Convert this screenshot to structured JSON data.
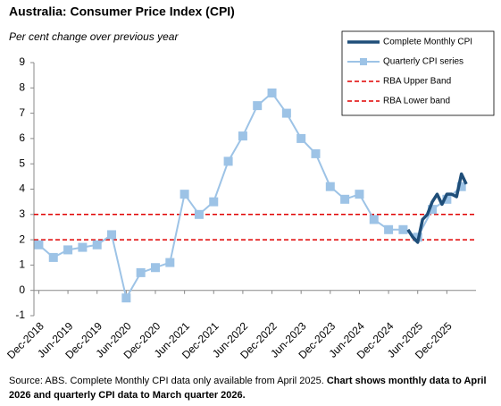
{
  "chart_data": {
    "type": "line",
    "title": "Australia: Consumer Price Index (CPI)",
    "subtitle": "Per cent change over previous year",
    "footnote": "Source: ABS.  Complete Monthly CPI data only available from April 2025.",
    "footnote_bold": "Chart shows monthly data to April 2026 and quarterly CPI data to March quarter 2026.",
    "ylim": [
      -1,
      9
    ],
    "yticks": [
      -1,
      0,
      1,
      2,
      3,
      4,
      5,
      6,
      7,
      8,
      9
    ],
    "xlim": [
      "Nov-2018",
      "Jun-2026"
    ],
    "xticks": [
      "Dec-2018",
      "Jun-2019",
      "Dec-2019",
      "Jun-2020",
      "Dec-2020",
      "Jun-2021",
      "Dec-2021",
      "Jun-2022",
      "Dec-2022",
      "Jun-2023",
      "Dec-2023",
      "Jun-2024",
      "Dec-2024",
      "Jun-2025",
      "Dec-2025"
    ],
    "legend": "top-right",
    "series": [
      {
        "name": "Complete Monthly CPI",
        "color": "#1f4e79",
        "x": [
          "Apr-2025",
          "May-2025",
          "Jun-2025",
          "Jul-2025",
          "Aug-2025",
          "Sep-2025",
          "Oct-2025",
          "Nov-2025",
          "Dec-2025",
          "Jan-2026",
          "Feb-2026",
          "Mar-2026",
          "Apr-2026"
        ],
        "values": [
          2.4,
          2.1,
          1.9,
          2.8,
          3.0,
          3.5,
          3.8,
          3.4,
          3.8,
          3.8,
          3.7,
          4.6,
          4.2
        ]
      },
      {
        "name": "Quarterly CPI series",
        "color": "#9dc3e6",
        "x": [
          "Dec-2018",
          "Mar-2019",
          "Jun-2019",
          "Sep-2019",
          "Dec-2019",
          "Mar-2020",
          "Jun-2020",
          "Sep-2020",
          "Dec-2020",
          "Mar-2021",
          "Jun-2021",
          "Sep-2021",
          "Dec-2021",
          "Mar-2022",
          "Jun-2022",
          "Sep-2022",
          "Dec-2022",
          "Mar-2023",
          "Jun-2023",
          "Sep-2023",
          "Dec-2023",
          "Mar-2024",
          "Jun-2024",
          "Sep-2024",
          "Dec-2024",
          "Mar-2025",
          "Jun-2025",
          "Sep-2025",
          "Dec-2025",
          "Mar-2026"
        ],
        "values": [
          1.8,
          1.3,
          1.6,
          1.7,
          1.8,
          2.2,
          -0.3,
          0.7,
          0.9,
          1.1,
          3.8,
          3.0,
          3.5,
          5.1,
          6.1,
          7.3,
          7.8,
          7.0,
          6.0,
          5.4,
          4.1,
          3.6,
          3.8,
          2.8,
          2.4,
          2.4,
          2.1,
          3.2,
          3.6,
          4.1
        ]
      }
    ],
    "bands": [
      {
        "name": "RBA Upper Band",
        "value": 3,
        "color": "#e00000"
      },
      {
        "name": "RBA Lower band",
        "value": 2,
        "color": "#e00000"
      }
    ]
  }
}
